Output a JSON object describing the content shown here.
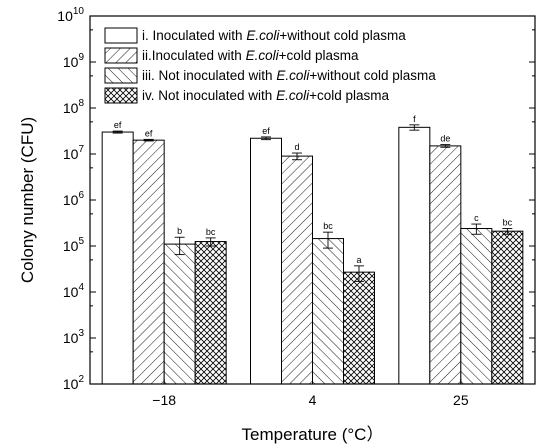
{
  "chart_data": {
    "type": "bar",
    "title": "",
    "xlabel": "Temperature (°C）",
    "ylabel": "Colony number (CFU)",
    "yscale": "log",
    "ylim": [
      100,
      10000000000
    ],
    "y_tick_labels": [
      {
        "base": "10",
        "exp": "2"
      },
      {
        "base": "10",
        "exp": "3"
      },
      {
        "base": "10",
        "exp": "4"
      },
      {
        "base": "10",
        "exp": "5"
      },
      {
        "base": "10",
        "exp": "6"
      },
      {
        "base": "10",
        "exp": "7"
      },
      {
        "base": "10",
        "exp": "8"
      },
      {
        "base": "10",
        "exp": "9"
      },
      {
        "base": "10",
        "exp": "10"
      }
    ],
    "categories": [
      "−18",
      "4",
      "25"
    ],
    "legend_position": "top-right",
    "series": [
      {
        "legend": {
          "pre": "i. Inoculated with ",
          "ital": "E.coli",
          "post": "+without cold plasma"
        },
        "fill": "none",
        "values": [
          30000000,
          22000000,
          38000000
        ],
        "errors": [
          1500000,
          1500000,
          5000000
        ],
        "labels": [
          "ef",
          "ef",
          "f"
        ]
      },
      {
        "legend": {
          "pre": "ii.Inoculated with ",
          "ital": "E.coli",
          "post": "+cold plasma"
        },
        "fill": "hatch-forward",
        "values": [
          20000000,
          9000000,
          15000000
        ],
        "errors": [
          800000,
          1500000,
          1000000
        ],
        "labels": [
          "ef",
          "d",
          "de"
        ]
      },
      {
        "legend": {
          "pre": "iii. Not inoculated with ",
          "ital": "E.coli",
          "post": "+without cold plasma"
        },
        "fill": "hatch-back",
        "values": [
          110000,
          145000,
          240000
        ],
        "errors": [
          45000,
          55000,
          60000
        ],
        "labels": [
          "b",
          "bc",
          "c"
        ]
      },
      {
        "legend": {
          "pre": "iv. Not inoculated with ",
          "ital": "E.coli",
          "post": "+cold plasma"
        },
        "fill": "crosshatch",
        "values": [
          125000,
          27000,
          210000
        ],
        "errors": [
          25000,
          10000,
          30000
        ],
        "labels": [
          "bc",
          "a",
          "bc"
        ]
      }
    ]
  }
}
